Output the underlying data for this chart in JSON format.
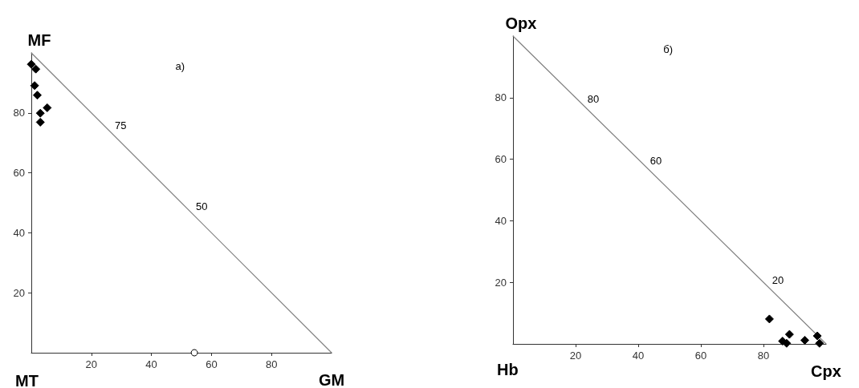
{
  "chart_data": [
    {
      "type": "scatter",
      "xlabel": "GM",
      "ylabel": "MF",
      "xlim": [
        0,
        100
      ],
      "ylim": [
        0,
        100
      ],
      "xticks": [
        20,
        40,
        60,
        80
      ],
      "yticks": [
        20,
        40,
        60,
        80
      ],
      "grid": false,
      "marker": "diamond",
      "annotations": [
        "a)",
        "MT",
        {
          "text": "75",
          "x": 27,
          "y": 73
        },
        {
          "text": "50",
          "x": 54,
          "y": 46
        }
      ],
      "series": [
        {
          "type": "line",
          "color": "#808080",
          "marker": "none",
          "x": [
            0,
            100
          ],
          "values": [
            100,
            0
          ]
        },
        {
          "color": "#000000",
          "x": [
            0,
            1.5,
            1.1,
            2,
            5.3,
            3,
            3
          ],
          "values": [
            96.2,
            94.6,
            89.1,
            85.9,
            81.7,
            79.9,
            76.9
          ]
        },
        {
          "color": "#ffffff",
          "marker": "circle",
          "x": [
            54.3
          ],
          "values": [
            0
          ]
        }
      ]
    },
    {
      "type": "scatter",
      "xlabel": "Cpx",
      "ylabel": "Opx",
      "xlim": [
        0,
        100
      ],
      "ylim": [
        0,
        100
      ],
      "xticks": [
        20,
        40,
        60,
        80
      ],
      "yticks": [
        20,
        40,
        60,
        80
      ],
      "grid": false,
      "marker": "diamond",
      "annotations": [
        "б)",
        "Hb",
        {
          "text": "80",
          "x": 23,
          "y": 77
        },
        {
          "text": "60",
          "x": 43,
          "y": 57
        },
        {
          "text": "20",
          "x": 82,
          "y": 18
        }
      ],
      "series": [
        {
          "type": "line",
          "color": "#808080",
          "marker": "none",
          "x": [
            0,
            100
          ],
          "values": [
            100,
            0
          ]
        },
        {
          "color": "#000000",
          "x": [
            81.9,
            88.3,
            86.1,
            87.4,
            93.2,
            97.2,
            97.9
          ],
          "values": [
            8.1,
            3.1,
            0.9,
            0.2,
            1.2,
            2.6,
            0.2
          ]
        }
      ]
    }
  ]
}
